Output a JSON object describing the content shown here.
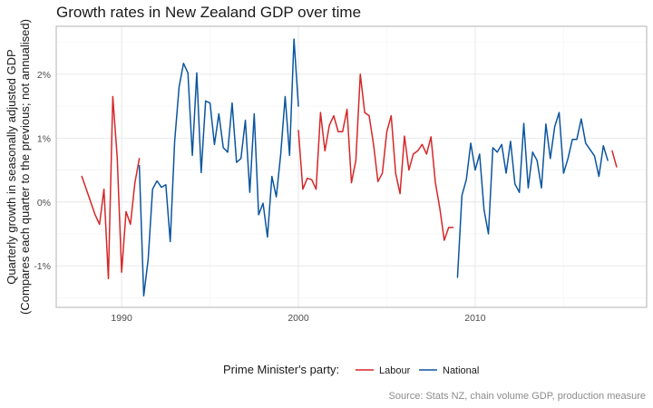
{
  "chart_data": {
    "type": "line",
    "title": "Growth rates in New Zealand GDP over time",
    "ylabel": "Quarterly growth in seasonally adjusted GDP",
    "ylabel_sub": "(Compares each quarter to the previous; not annualised)",
    "xlabel": "",
    "caption": "Source: Stats NZ, chain volume GDP, production measure",
    "legend_title": "Prime Minister's party:",
    "legend_position": "bottom",
    "grid": true,
    "xlim": [
      1986.3,
      2019.7
    ],
    "ylim": [
      -1.65,
      2.75
    ],
    "x_ticks": [
      1990,
      2000,
      2010
    ],
    "x_tick_labels": [
      "1990",
      "2000",
      "2010"
    ],
    "y_ticks": [
      -1,
      0,
      1,
      2
    ],
    "y_tick_labels": [
      "-1%",
      "0%",
      "1%",
      "2%"
    ],
    "colors": {
      "Labour": "#d62728",
      "National": "#0b559f"
    },
    "series": [
      {
        "name": "Labour",
        "color": "#d62728",
        "segments": [
          [
            [
              1987.75,
              0.4
            ],
            [
              1988.0,
              0.2
            ],
            [
              1988.25,
              0.0
            ],
            [
              1988.5,
              -0.2
            ],
            [
              1988.75,
              -0.35
            ],
            [
              1989.0,
              0.2
            ],
            [
              1989.25,
              -1.2
            ],
            [
              1989.5,
              1.65
            ],
            [
              1989.75,
              0.7
            ],
            [
              1990.0,
              -1.1
            ],
            [
              1990.25,
              -0.15
            ],
            [
              1990.5,
              -0.35
            ],
            [
              1990.75,
              0.3
            ],
            [
              1991.0,
              0.68
            ]
          ],
          [
            [
              2000.0,
              1.12
            ],
            [
              2000.25,
              0.2
            ],
            [
              2000.5,
              0.37
            ],
            [
              2000.75,
              0.35
            ],
            [
              2001.0,
              0.2
            ],
            [
              2001.25,
              1.4
            ],
            [
              2001.5,
              0.8
            ],
            [
              2001.75,
              1.2
            ],
            [
              2002.0,
              1.35
            ],
            [
              2002.25,
              1.1
            ],
            [
              2002.5,
              1.1
            ],
            [
              2002.75,
              1.45
            ],
            [
              2003.0,
              0.3
            ],
            [
              2003.25,
              0.65
            ],
            [
              2003.5,
              2.0
            ],
            [
              2003.75,
              1.4
            ],
            [
              2004.0,
              1.35
            ],
            [
              2004.25,
              0.9
            ],
            [
              2004.5,
              0.32
            ],
            [
              2004.75,
              0.45
            ],
            [
              2005.0,
              1.1
            ],
            [
              2005.25,
              1.35
            ],
            [
              2005.5,
              0.45
            ],
            [
              2005.75,
              0.13
            ],
            [
              2006.0,
              1.03
            ],
            [
              2006.25,
              0.5
            ],
            [
              2006.5,
              0.75
            ],
            [
              2006.75,
              0.8
            ],
            [
              2007.0,
              0.9
            ],
            [
              2007.25,
              0.75
            ],
            [
              2007.5,
              1.02
            ],
            [
              2007.75,
              0.3
            ],
            [
              2008.0,
              -0.1
            ],
            [
              2008.25,
              -0.6
            ],
            [
              2008.5,
              -0.4
            ],
            [
              2008.75,
              -0.4
            ]
          ],
          [
            [
              2017.75,
              0.8
            ],
            [
              2018.0,
              0.55
            ]
          ]
        ]
      },
      {
        "name": "National",
        "color": "#0b559f",
        "segments": [
          [
            [
              1991.0,
              0.57
            ],
            [
              1991.25,
              -1.47
            ],
            [
              1991.5,
              -0.9
            ],
            [
              1991.75,
              0.2
            ],
            [
              1992.0,
              0.33
            ],
            [
              1992.25,
              0.23
            ],
            [
              1992.5,
              0.27
            ],
            [
              1992.75,
              -0.62
            ],
            [
              1993.0,
              0.95
            ],
            [
              1993.25,
              1.8
            ],
            [
              1993.5,
              2.17
            ],
            [
              1993.75,
              2.02
            ],
            [
              1994.0,
              0.73
            ],
            [
              1994.25,
              2.02
            ],
            [
              1994.5,
              0.46
            ],
            [
              1994.75,
              1.58
            ],
            [
              1995.0,
              1.55
            ],
            [
              1995.25,
              0.9
            ],
            [
              1995.5,
              1.38
            ],
            [
              1995.75,
              0.85
            ],
            [
              1996.0,
              0.78
            ],
            [
              1996.25,
              1.55
            ],
            [
              1996.5,
              0.62
            ],
            [
              1996.75,
              0.68
            ],
            [
              1997.0,
              1.28
            ],
            [
              1997.25,
              0.15
            ],
            [
              1997.5,
              1.38
            ],
            [
              1997.75,
              -0.2
            ],
            [
              1998.0,
              -0.02
            ],
            [
              1998.25,
              -0.55
            ],
            [
              1998.5,
              0.4
            ],
            [
              1998.75,
              0.08
            ],
            [
              1999.0,
              0.75
            ],
            [
              1999.25,
              1.65
            ],
            [
              1999.5,
              0.73
            ],
            [
              1999.75,
              2.55
            ],
            [
              2000.0,
              1.5
            ]
          ],
          [
            [
              2009.0,
              -1.18
            ],
            [
              2009.25,
              0.1
            ],
            [
              2009.5,
              0.35
            ],
            [
              2009.75,
              0.92
            ],
            [
              2010.0,
              0.5
            ],
            [
              2010.25,
              0.75
            ],
            [
              2010.5,
              -0.12
            ],
            [
              2010.75,
              -0.5
            ],
            [
              2011.0,
              0.85
            ],
            [
              2011.25,
              0.78
            ],
            [
              2011.5,
              0.9
            ],
            [
              2011.75,
              0.45
            ],
            [
              2012.0,
              0.95
            ],
            [
              2012.25,
              0.28
            ],
            [
              2012.5,
              0.15
            ],
            [
              2012.75,
              1.23
            ],
            [
              2013.0,
              0.22
            ],
            [
              2013.25,
              0.78
            ],
            [
              2013.5,
              0.65
            ],
            [
              2013.75,
              0.22
            ],
            [
              2014.0,
              1.22
            ],
            [
              2014.25,
              0.68
            ],
            [
              2014.5,
              1.18
            ],
            [
              2014.75,
              1.4
            ],
            [
              2015.0,
              0.45
            ],
            [
              2015.25,
              0.68
            ],
            [
              2015.5,
              0.98
            ],
            [
              2015.75,
              0.98
            ],
            [
              2016.0,
              1.3
            ],
            [
              2016.25,
              0.92
            ],
            [
              2016.5,
              0.82
            ],
            [
              2016.75,
              0.72
            ],
            [
              2017.0,
              0.4
            ],
            [
              2017.25,
              0.88
            ],
            [
              2017.5,
              0.65
            ]
          ]
        ]
      }
    ]
  }
}
